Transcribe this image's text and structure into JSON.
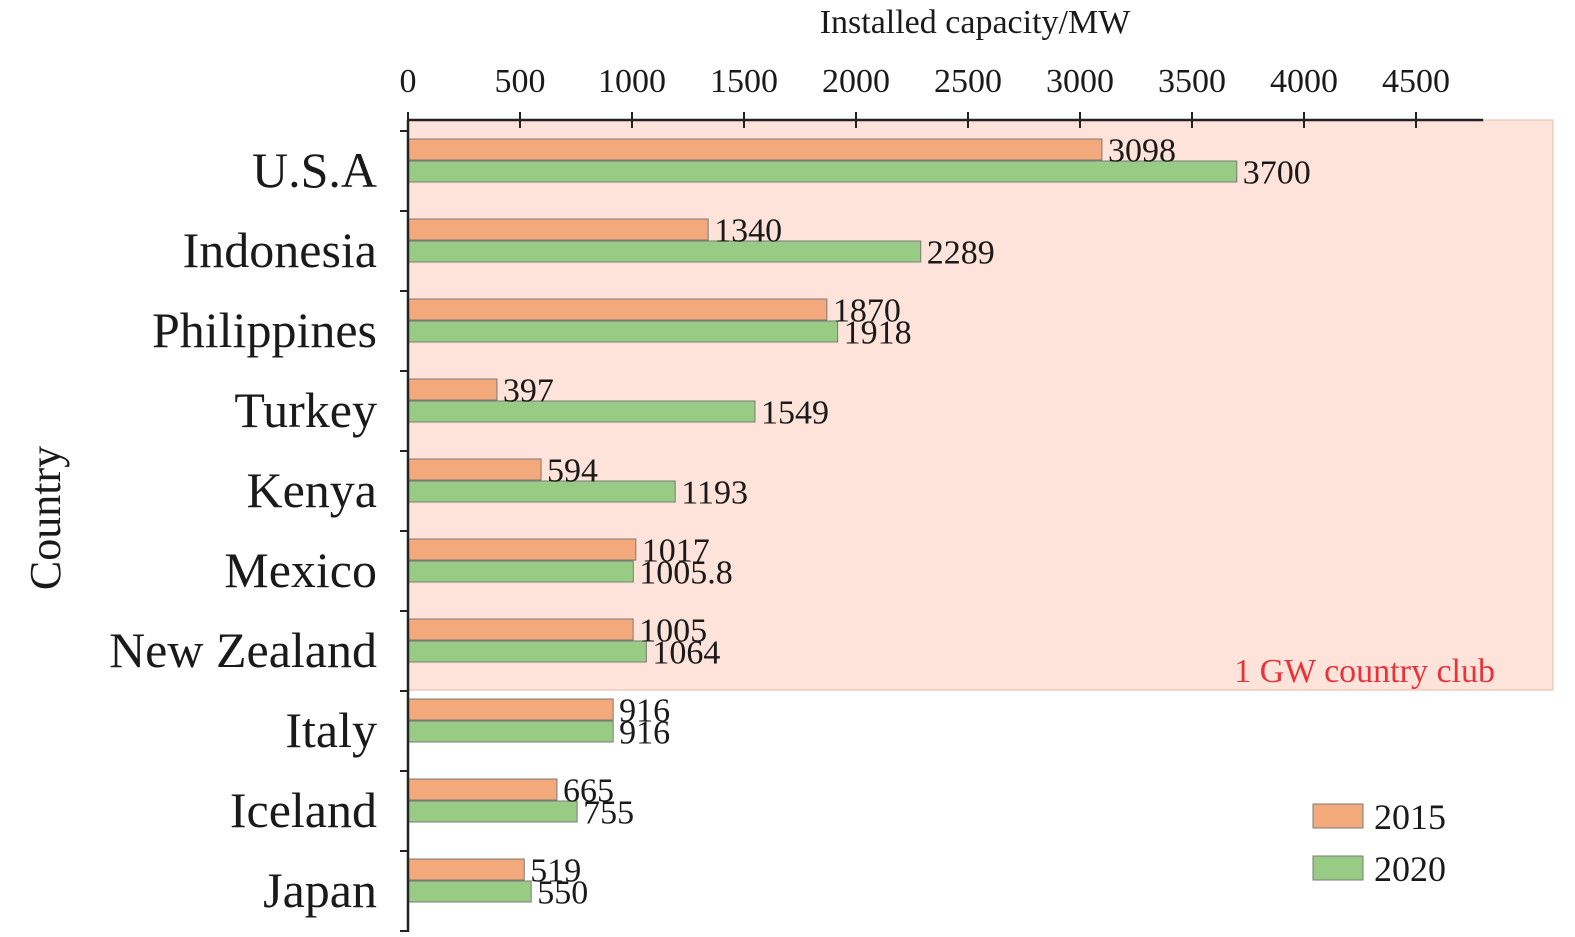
{
  "chart_data": {
    "type": "bar",
    "orientation": "horizontal",
    "xlabel": "Installed capacity/MW",
    "ylabel": "Country",
    "xlim": [
      0,
      4800
    ],
    "xticks": [
      0,
      500,
      1000,
      1500,
      2000,
      2500,
      3000,
      3500,
      4000,
      4500
    ],
    "x_axis_position": "top",
    "grid": false,
    "legend_position": "bottom-right",
    "categories": [
      "U.S.A",
      "Indonesia",
      "Philippines",
      "Turkey",
      "Kenya",
      "Mexico",
      "New Zealand",
      "Italy",
      "Iceland",
      "Japan"
    ],
    "series": [
      {
        "name": "2015",
        "color": "#f4a97c",
        "values": [
          3098,
          1340,
          1870,
          397,
          594,
          1017,
          1005,
          916,
          665,
          519
        ],
        "labels": [
          "3098",
          "1340",
          "1870",
          "397",
          "594",
          "1017",
          "1005",
          "916",
          "665",
          "519"
        ]
      },
      {
        "name": "2020",
        "color": "#98cc84",
        "values": [
          3700,
          2289,
          1918,
          1549,
          1193,
          1005.8,
          1064,
          916,
          755,
          550
        ],
        "labels": [
          "3700",
          "2289",
          "1918",
          "1549",
          "1193",
          "1005.8",
          "1064",
          "916",
          "755",
          "550"
        ]
      }
    ],
    "highlight": {
      "label": "1 GW country club",
      "categories": [
        "U.S.A",
        "Indonesia",
        "Philippines",
        "Turkey",
        "Kenya",
        "Mexico",
        "New Zealand"
      ],
      "fill_color": "#fde3da",
      "label_color": "#e8333a"
    }
  }
}
